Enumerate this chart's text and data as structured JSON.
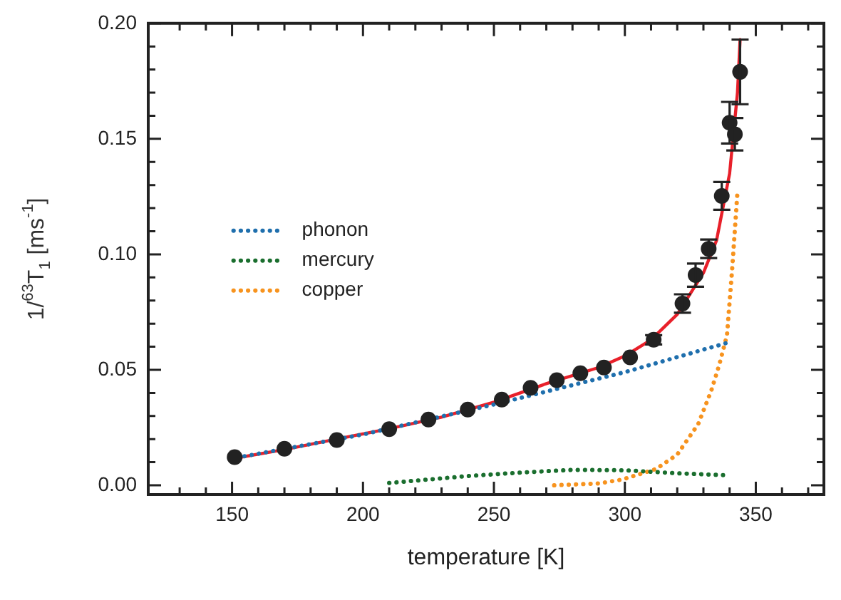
{
  "chart_data": {
    "type": "scatter",
    "xlabel": "temperature [K]",
    "ylabel": "1/$^{63}$T$_{1}$ [ms$^{-1}$]",
    "xlim": [
      118,
      376
    ],
    "ylim": [
      -0.004,
      0.2
    ],
    "xticks": [
      {
        "value": 130,
        "label": null
      },
      {
        "value": 140,
        "label": null
      },
      150,
      {
        "value": 160,
        "label": null
      },
      {
        "value": 170,
        "label": null
      },
      {
        "value": 180,
        "label": null
      },
      {
        "value": 190,
        "label": null
      },
      200,
      {
        "value": 210,
        "label": null
      },
      {
        "value": 220,
        "label": null
      },
      {
        "value": 230,
        "label": null
      },
      {
        "value": 240,
        "label": null
      },
      250,
      {
        "value": 260,
        "label": null
      },
      {
        "value": 270,
        "label": null
      },
      {
        "value": 280,
        "label": null
      },
      {
        "value": 290,
        "label": null
      },
      300,
      {
        "value": 310,
        "label": null
      },
      {
        "value": 320,
        "label": null
      },
      {
        "value": 330,
        "label": null
      },
      {
        "value": 340,
        "label": null
      },
      350,
      {
        "value": 360,
        "label": null
      },
      {
        "value": 370,
        "label": null
      }
    ],
    "yticks": [
      {
        "value": 0,
        "label": "0.00"
      },
      {
        "value": 0.01,
        "label": null
      },
      {
        "value": 0.02,
        "label": null
      },
      {
        "value": 0.03,
        "label": null
      },
      {
        "value": 0.04,
        "label": null
      },
      {
        "value": 0.05,
        "label": "0.05"
      },
      {
        "value": 0.06,
        "label": null
      },
      {
        "value": 0.07,
        "label": null
      },
      {
        "value": 0.08,
        "label": null
      },
      {
        "value": 0.09,
        "label": null
      },
      {
        "value": 0.1,
        "label": "0.10"
      },
      {
        "value": 0.11,
        "label": null
      },
      {
        "value": 0.12,
        "label": null
      },
      {
        "value": 0.13,
        "label": null
      },
      {
        "value": 0.14,
        "label": null
      },
      {
        "value": 0.15,
        "label": "0.15"
      },
      {
        "value": 0.16,
        "label": null
      },
      {
        "value": 0.17,
        "label": null
      },
      {
        "value": 0.18,
        "label": null
      },
      {
        "value": 0.19,
        "label": null
      },
      {
        "value": 0.2,
        "label": "0.20"
      }
    ],
    "grid": false,
    "legend": "left",
    "series": [
      {
        "name": "phonon",
        "type": "line",
        "color": "#1f6fad",
        "line_style": "dotted",
        "marker": "none",
        "x": [
          152,
          200,
          250,
          300,
          340
        ],
        "values": [
          0.012,
          0.022,
          0.035,
          0.049,
          0.062
        ]
      },
      {
        "name": "mercury",
        "type": "line",
        "color": "#1a6e2e",
        "line_style": "dotted",
        "marker": "none",
        "x": [
          210,
          240,
          260,
          280,
          300,
          320,
          340
        ],
        "values": [
          0.001,
          0.004,
          0.0055,
          0.0067,
          0.0065,
          0.0052,
          0.0043
        ]
      },
      {
        "name": "copper",
        "type": "line",
        "color": "#f7931e",
        "line_style": "dotted",
        "marker": "none",
        "x": [
          273,
          290,
          299,
          312,
          320,
          328,
          333,
          336,
          339,
          341,
          343
        ],
        "values": [
          0,
          0.0008,
          0.0025,
          0.0071,
          0.0133,
          0.0265,
          0.041,
          0.052,
          0.065,
          0.094,
          0.127
        ]
      },
      {
        "type": "line",
        "color": "#e8202a",
        "line_style": "solid",
        "marker": "none",
        "x": [
          150,
          170,
          190,
          210,
          230,
          250,
          270,
          290,
          300,
          310,
          320,
          330,
          335,
          340,
          343,
          344
        ],
        "values": [
          0.0115,
          0.0155,
          0.02,
          0.0245,
          0.0295,
          0.036,
          0.044,
          0.051,
          0.056,
          0.063,
          0.074,
          0.092,
          0.106,
          0.135,
          0.17,
          0.193
        ]
      },
      {
        "type": "scatter",
        "color": "#222222",
        "marker": "circle",
        "x": [
          151,
          170,
          190,
          210,
          225,
          240,
          253,
          264,
          274,
          283,
          292,
          302,
          311,
          322,
          327,
          332,
          337,
          340,
          342,
          344
        ],
        "values": [
          0.0122,
          0.0158,
          0.0196,
          0.0243,
          0.0285,
          0.0328,
          0.0371,
          0.0422,
          0.0455,
          0.0485,
          0.051,
          0.0554,
          0.063,
          0.0787,
          0.091,
          0.1024,
          0.1253,
          0.157,
          0.152,
          0.179
        ],
        "errors": [
          null,
          null,
          null,
          null,
          null,
          null,
          null,
          null,
          null,
          null,
          null,
          null,
          0.002,
          0.004,
          0.005,
          0.004,
          0.006,
          0.009,
          0.007,
          0.014
        ]
      }
    ]
  }
}
